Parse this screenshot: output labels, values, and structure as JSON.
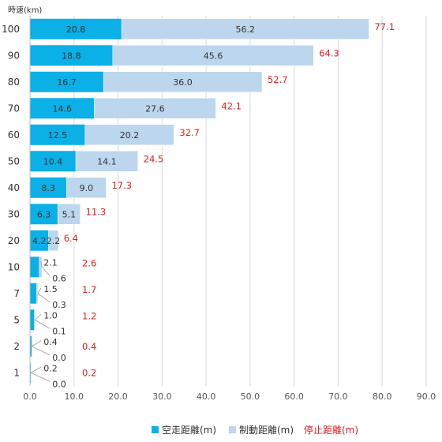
{
  "chart_data": {
    "type": "bar",
    "orientation": "horizontal",
    "stacked": true,
    "axis_unit_label": "時速(km)",
    "categories": [
      "100",
      "90",
      "80",
      "70",
      "60",
      "50",
      "40",
      "30",
      "20",
      "10",
      "7",
      "5",
      "2",
      "1"
    ],
    "series": [
      {
        "name": "空走距離(m)",
        "color": "#0ab0e6",
        "values": [
          20.8,
          18.8,
          16.7,
          14.6,
          12.5,
          10.4,
          8.3,
          6.3,
          4.2,
          2.1,
          1.5,
          1.0,
          0.4,
          0.2
        ],
        "labels": [
          "20.8",
          "18.8",
          "16.7",
          "14.6",
          "12.5",
          "10.4",
          "8.3",
          "6.3",
          "4.2",
          "2.1",
          "1.5",
          "1.0",
          "0.4",
          "0.2"
        ]
      },
      {
        "name": "制動距離(m)",
        "color": "#bcd6ee",
        "values": [
          56.2,
          45.6,
          36.0,
          27.6,
          20.2,
          14.1,
          9.0,
          5.1,
          2.2,
          0.6,
          0.3,
          0.1,
          0.0,
          0.0
        ],
        "labels": [
          "56.2",
          "45.6",
          "36.0",
          "27.6",
          "20.2",
          "14.1",
          "9.0",
          "5.1",
          "2.2",
          "0.6",
          "0.3",
          "0.1",
          "0.0",
          "0.0"
        ]
      }
    ],
    "totals": {
      "name": "停止距離(m)",
      "color": "#e11d1d",
      "values": [
        77.1,
        64.3,
        52.7,
        42.1,
        32.7,
        24.5,
        17.3,
        11.3,
        6.4,
        2.6,
        1.7,
        1.2,
        0.4,
        0.2
      ],
      "labels": [
        "77.1",
        "64.3",
        "52.7",
        "42.1",
        "32.7",
        "24.5",
        "17.3",
        "11.3",
        "6.4",
        "2.6",
        "1.7",
        "1.2",
        "0.4",
        "0.2"
      ]
    },
    "xlim": [
      0,
      90
    ],
    "xticks": [
      "0.0",
      "10.0",
      "20.0",
      "30.0",
      "40.0",
      "50.0",
      "60.0",
      "70.0",
      "80.0",
      "90.0"
    ],
    "grid": true,
    "legend_position": "bottom"
  }
}
